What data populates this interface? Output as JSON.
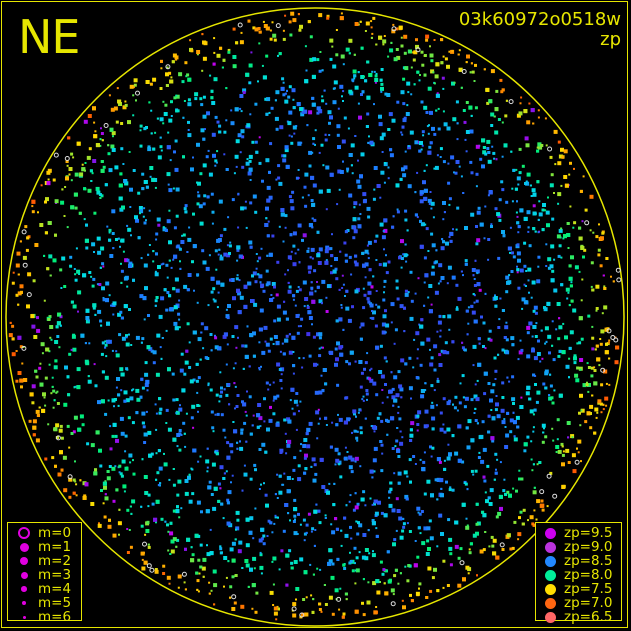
{
  "header": {
    "direction": "NE",
    "title": "03k60972o0518w",
    "subtitle": "zp"
  },
  "chart_data": {
    "type": "scatter",
    "title": "03k60972o0518w",
    "color_variable": "zp",
    "grid": false,
    "legend_placement": [
      "bottom-left",
      "bottom-right"
    ],
    "size_legend": [
      {
        "label": "m=0",
        "style": "ring"
      },
      {
        "label": "m=1",
        "style": "dot"
      },
      {
        "label": "m=2",
        "style": "dot"
      },
      {
        "label": "m=3",
        "style": "dot"
      },
      {
        "label": "m=4",
        "style": "dot"
      },
      {
        "label": "m=5",
        "style": "dot"
      },
      {
        "label": "m=6",
        "style": "dot"
      }
    ],
    "color_legend": [
      {
        "label": "zp=9.5",
        "zp": 9.5,
        "color": "#cc00ee"
      },
      {
        "label": "zp=9.0",
        "zp": 9.0,
        "color": "#bb33dd"
      },
      {
        "label": "zp=8.5",
        "zp": 8.5,
        "color": "#2288ff"
      },
      {
        "label": "zp=8.0",
        "zp": 8.0,
        "color": "#00ee99"
      },
      {
        "label": "zp=7.5",
        "zp": 7.5,
        "color": "#ffdd00"
      },
      {
        "label": "zp=7.0",
        "zp": 7.0,
        "color": "#ff6611"
      },
      {
        "label": "zp=6.5",
        "zp": 6.5,
        "color": "#ff6666"
      }
    ],
    "horizon_color": "#e6e600",
    "background": "#000000"
  }
}
